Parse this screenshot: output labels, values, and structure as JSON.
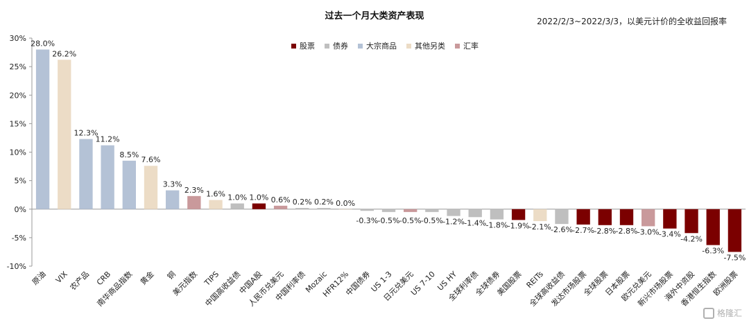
{
  "header": {
    "title": "过去一个月大类资产表现",
    "subtitle": "2022/2/3~2022/3/3，以美元计价的全收益回报率"
  },
  "watermark": {
    "text": "格隆汇"
  },
  "legend": [
    {
      "name": "股票",
      "color": "#7b0000"
    },
    {
      "name": "债券",
      "color": "#bfbfbf"
    },
    {
      "name": "大宗商品",
      "color": "#b4c2d6"
    },
    {
      "name": "其他另类",
      "color": "#ecdcc6"
    },
    {
      "name": "汇率",
      "color": "#c9999b"
    }
  ],
  "chart_data": {
    "type": "bar",
    "title": "过去一个月大类资产表现",
    "subtitle": "2022/2/3~2022/3/3，以美元计价的全收益回报率",
    "xlabel": "",
    "ylabel": "",
    "ylim": [
      -10,
      30
    ],
    "yticks": [
      -10,
      -5,
      0,
      5,
      10,
      15,
      20,
      25,
      30
    ],
    "ytick_labels": [
      "-10%",
      "-5%",
      "0%",
      "5%",
      "10%",
      "15%",
      "20%",
      "25%",
      "30%"
    ],
    "grid": false,
    "legend_position": "top",
    "categories": [
      "原油",
      "VIX",
      "农产品",
      "CRB",
      "南华商品指数",
      "黄金",
      "铜",
      "美元指数",
      "TIPS",
      "中国高收益债",
      "中国A股",
      "人民币兑美元",
      "中国利率债",
      "Mozaic",
      "HFR12%",
      "中国债券",
      "US 1-3",
      "日元兑美元",
      "US 7-10",
      "US HY",
      "全球利率债",
      "全球债券",
      "美国股票",
      "REITs",
      "全球高收益债",
      "发达市场股票",
      "全球股票",
      "日本股票",
      "欧元兑美元",
      "新兴市场股票",
      "海外中资股",
      "香港恒生指数",
      "欧洲股票"
    ],
    "values": [
      28.0,
      26.2,
      12.3,
      11.2,
      8.5,
      7.6,
      3.3,
      2.3,
      1.6,
      1.0,
      1.0,
      0.6,
      0.2,
      0.2,
      0.0,
      -0.3,
      -0.5,
      -0.5,
      -0.5,
      -1.2,
      -1.4,
      -1.8,
      -1.9,
      -2.1,
      -2.6,
      -2.7,
      -2.8,
      -2.8,
      -3.0,
      -3.4,
      -4.2,
      -6.3,
      -7.5
    ],
    "value_labels": [
      "28.0%",
      "26.2%",
      "12.3%",
      "11.2%",
      "8.5%",
      "7.6%",
      "3.3%",
      "2.3%",
      "1.6%",
      "1.0%",
      "1.0%",
      "0.6%",
      "0.2%",
      "0.2%",
      "0.0%",
      "-0.3%",
      "-0.5%",
      "-0.5%",
      "-0.5%",
      "-1.2%",
      "-1.4%",
      "-1.8%",
      "-1.9%",
      "-2.1%",
      "-2.6%",
      "-2.7%",
      "-2.8%",
      "-2.8%",
      "-3.0%",
      "-3.4%",
      "-4.2%",
      "-6.3%",
      "-7.5%"
    ],
    "asset_class": [
      "大宗商品",
      "其他另类",
      "大宗商品",
      "大宗商品",
      "大宗商品",
      "其他另类",
      "大宗商品",
      "汇率",
      "其他另类",
      "债券",
      "股票",
      "汇率",
      "债券",
      "债券",
      "其他另类",
      "债券",
      "债券",
      "汇率",
      "债券",
      "债券",
      "债券",
      "债券",
      "股票",
      "其他另类",
      "债券",
      "股票",
      "股票",
      "股票",
      "汇率",
      "股票",
      "股票",
      "股票",
      "股票"
    ]
  }
}
